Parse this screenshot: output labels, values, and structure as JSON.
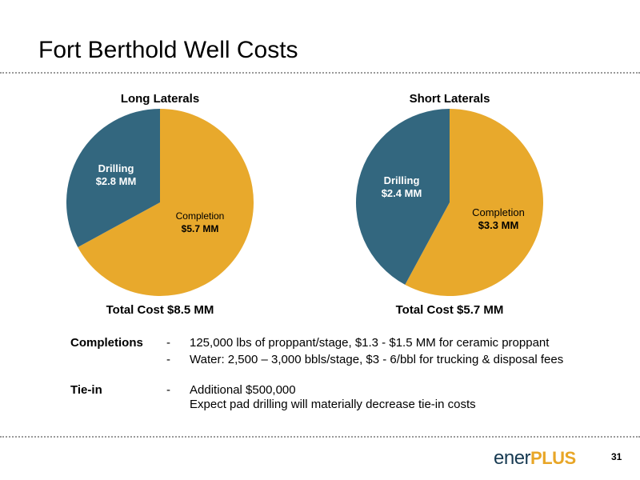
{
  "slide": {
    "title": "Fort Berthold Well Costs",
    "page_number": "31",
    "logo": {
      "part1": "ener",
      "part2": "PLUS"
    }
  },
  "colors": {
    "drilling": "#33677f",
    "completion": "#e8a92c"
  },
  "chart_data": [
    {
      "type": "pie",
      "title": "Long Laterals",
      "footer": "Total Cost $8.5 MM",
      "slices": [
        {
          "label": "Drilling",
          "value_label": "$2.8 MM",
          "value": 2.8,
          "color": "#33677f"
        },
        {
          "label": "Completion",
          "value_label": "$5.7 MM",
          "value": 5.7,
          "color": "#e8a92c"
        }
      ]
    },
    {
      "type": "pie",
      "title": "Short Laterals",
      "footer": "Total Cost $5.7 MM",
      "slices": [
        {
          "label": "Drilling",
          "value_label": "$2.4 MM",
          "value": 2.4,
          "color": "#33677f"
        },
        {
          "label": "Completion",
          "value_label": "$3.3 MM",
          "value": 3.3,
          "color": "#e8a92c"
        }
      ]
    }
  ],
  "notes": [
    {
      "heading": "Completions",
      "lines": [
        {
          "dash": "-",
          "text": "125,000 lbs of proppant/stage, $1.3 - $1.5 MM for ceramic proppant"
        },
        {
          "dash": "-",
          "text": "Water: 2,500 – 3,000 bbls/stage, $3 - 6/bbl for trucking & disposal fees"
        }
      ]
    },
    {
      "heading": "Tie-in",
      "lines": [
        {
          "dash": "-",
          "text": "Additional $500,000"
        },
        {
          "dash": "",
          "text": "Expect pad drilling will materially decrease tie-in costs"
        }
      ]
    }
  ]
}
